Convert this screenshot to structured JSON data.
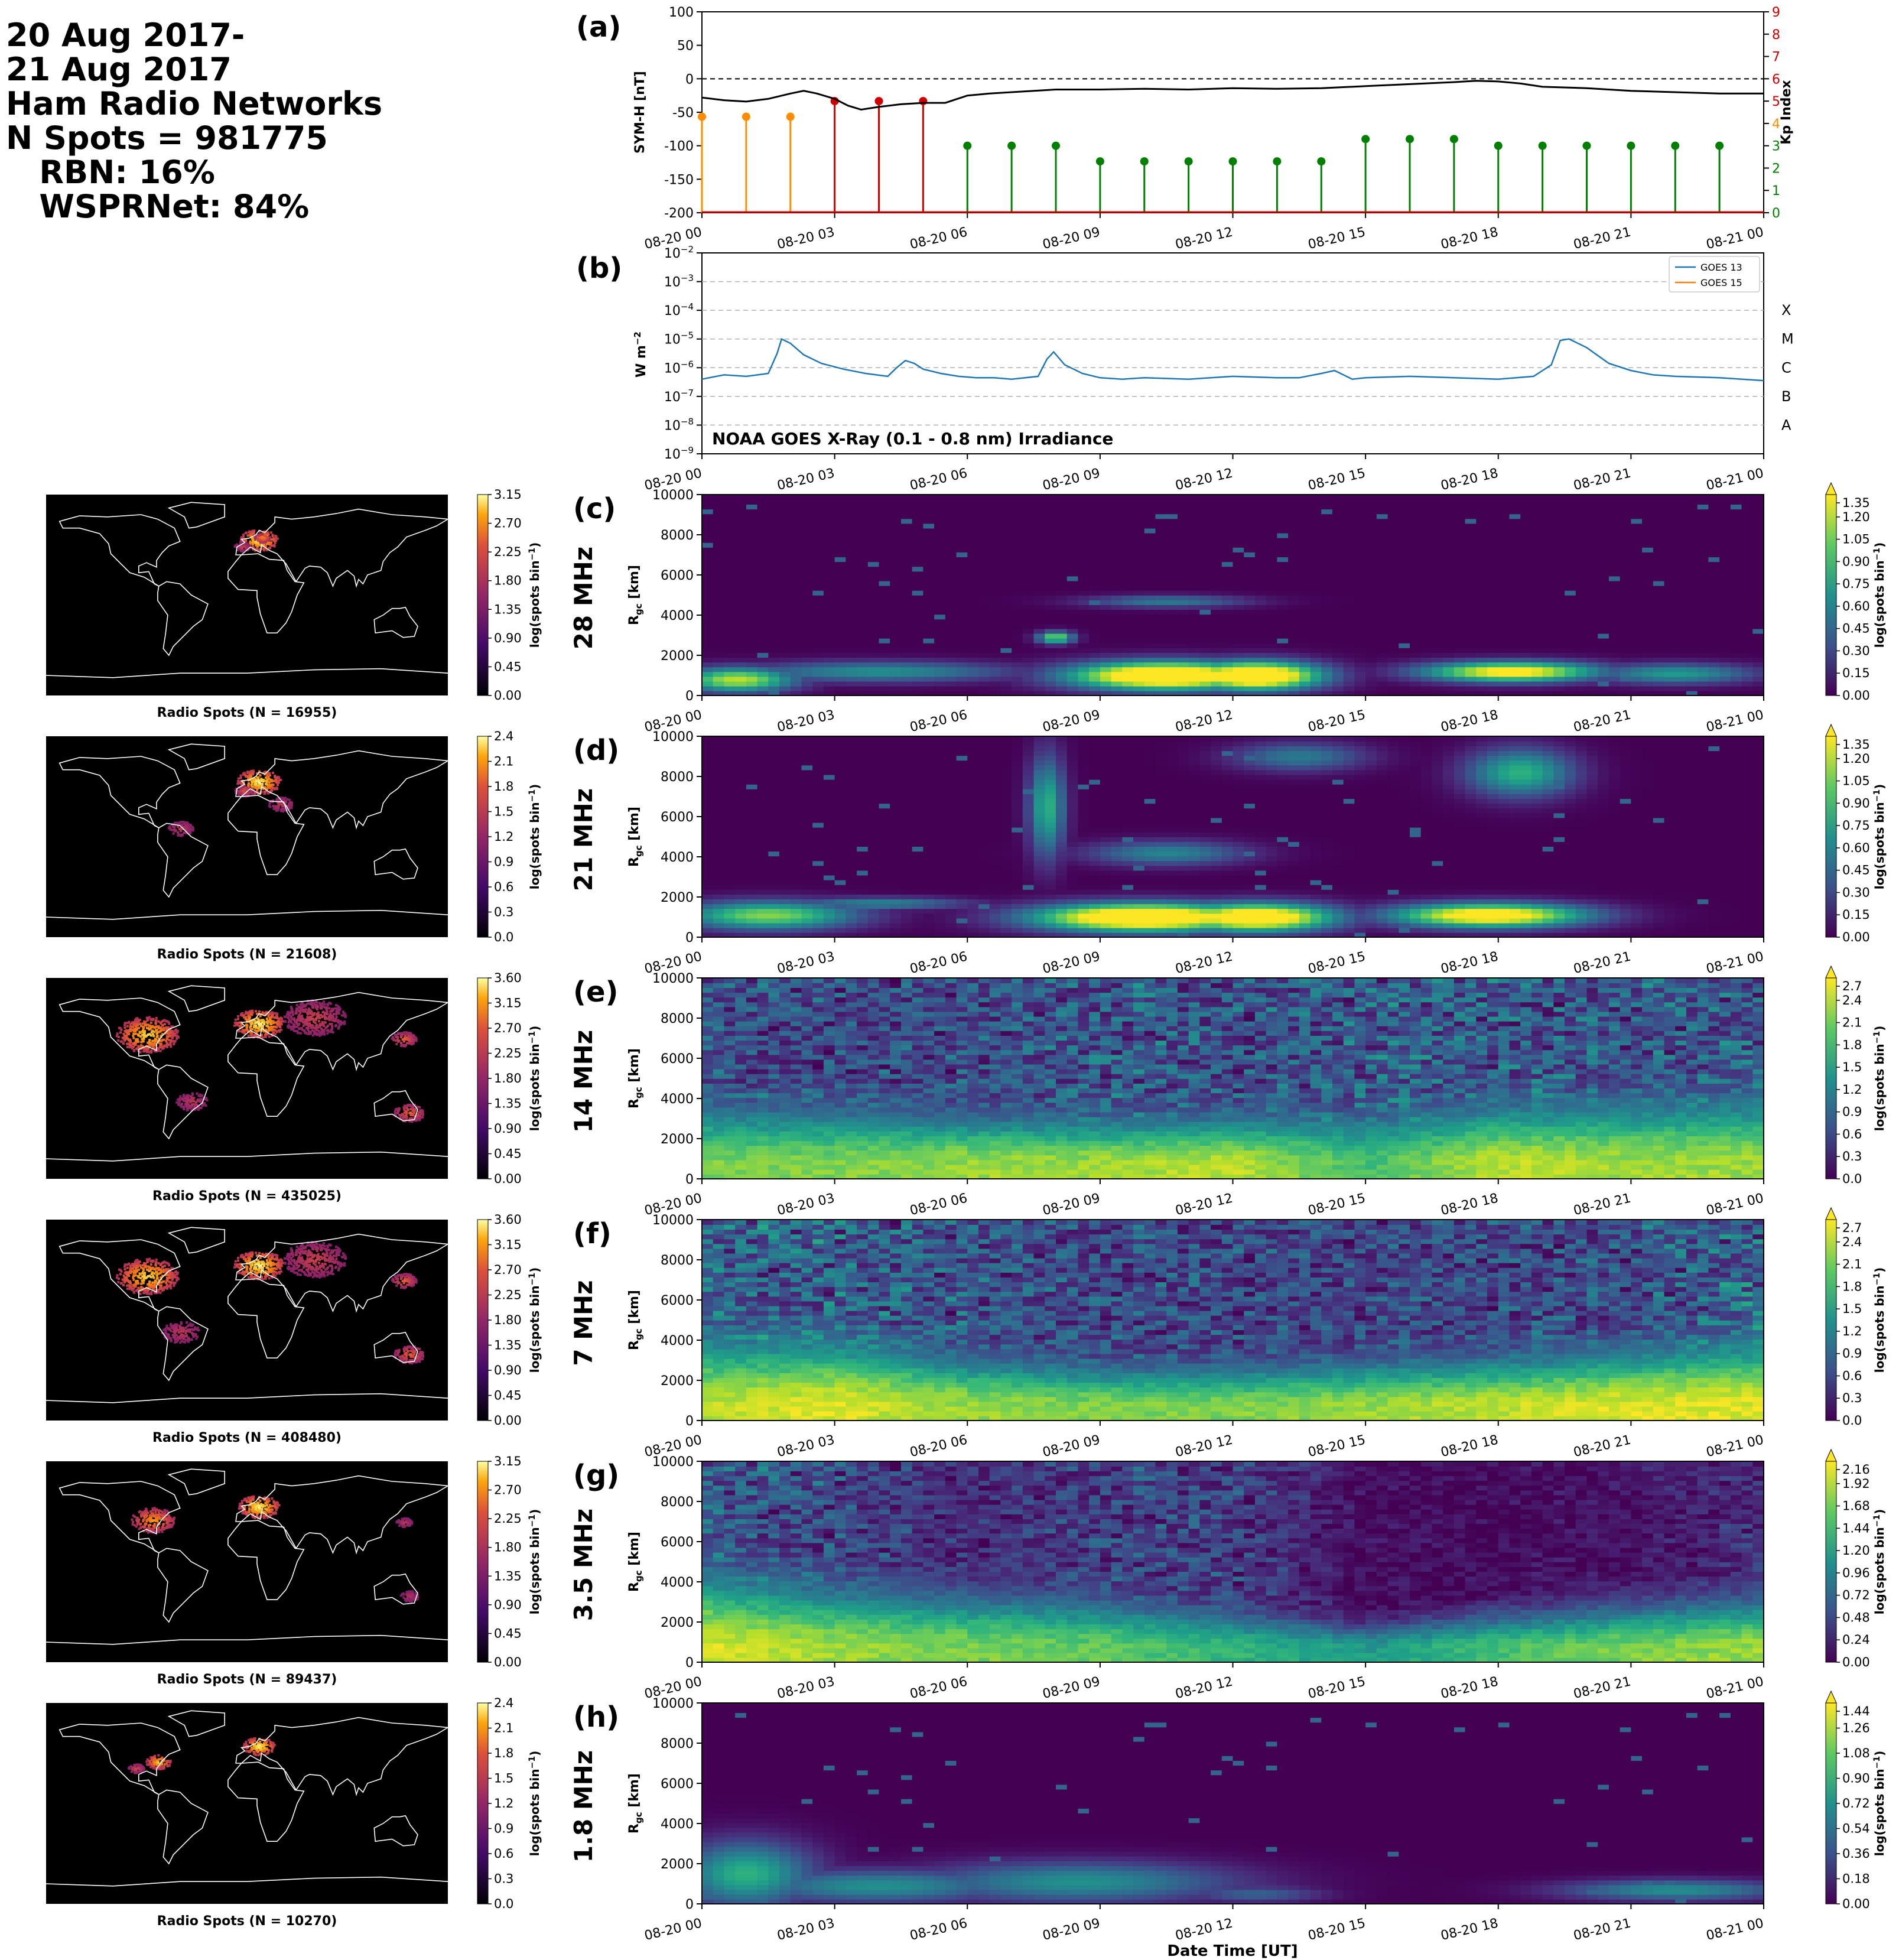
{
  "header": {
    "lines": [
      "20 Aug 2017-",
      "21 Aug 2017",
      "Ham Radio Networks",
      "N Spots = 981775",
      "   RBN: 16%",
      "   WSPRNet: 84%"
    ]
  },
  "time_ticks": [
    "08-20 00",
    "08-20 03",
    "08-20 06",
    "08-20 09",
    "08-20 12",
    "08-20 15",
    "08-20 18",
    "08-20 21",
    "08-21 00"
  ],
  "xlabel": "Date Time [UT]",
  "chart_data": [
    {
      "id": "a",
      "panel_label": "(a)",
      "type": "line",
      "ylabel_left": "SYM-H [nT]",
      "ylabel_right": "Kp Index",
      "ylim": [
        -200,
        100
      ],
      "yticks": [
        100,
        50,
        0,
        -50,
        -100,
        -150,
        -200
      ],
      "ylim_right": [
        0,
        9
      ],
      "yticks_right": [
        9,
        8,
        7,
        6,
        5,
        4,
        3,
        2,
        1,
        0
      ],
      "xlim_hours": [
        0,
        24
      ],
      "symh": {
        "hours": [
          0,
          0.5,
          1,
          1.5,
          2,
          2.3,
          2.6,
          3,
          3.3,
          3.6,
          4,
          4.5,
          5,
          5.5,
          6,
          6.5,
          7,
          8,
          9,
          10,
          11,
          12,
          13,
          14,
          15,
          16,
          17,
          17.5,
          18,
          18.5,
          19,
          20,
          21,
          22,
          23,
          24
        ],
        "values": [
          -28,
          -32,
          -34,
          -30,
          -22,
          -18,
          -22,
          -30,
          -40,
          -46,
          -42,
          -38,
          -36,
          -36,
          -25,
          -22,
          -20,
          -16,
          -16,
          -15,
          -16,
          -14,
          -15,
          -14,
          -11,
          -8,
          -5,
          -3,
          -4,
          -7,
          -12,
          -14,
          -18,
          -20,
          -22,
          -22
        ]
      },
      "kp": {
        "hours": [
          0,
          1,
          2,
          3,
          4,
          5,
          6,
          7,
          8,
          9,
          10,
          11,
          12,
          13,
          14,
          15,
          16,
          17,
          18,
          19,
          20,
          21,
          22,
          23
        ],
        "values": [
          4.3,
          4.3,
          4.3,
          5.0,
          5.0,
          5.0,
          3.0,
          3.0,
          3.0,
          2.3,
          2.3,
          2.3,
          2.3,
          2.3,
          2.3,
          3.3,
          3.3,
          3.3,
          3.0,
          3.0,
          3.0,
          3.0,
          3.0,
          3.0
        ]
      },
      "kp_colors": {
        "green": "#008000",
        "orange": "#ff8c00",
        "red": "#d00000"
      }
    },
    {
      "id": "b",
      "panel_label": "(b)",
      "type": "line",
      "ylabel": "W m$^{-2}$",
      "ylim_log10": [
        -9,
        -2
      ],
      "yticks_log10": [
        -2,
        -3,
        -4,
        -5,
        -6,
        -7,
        -8,
        -9
      ],
      "class_labels": [
        "X",
        "M",
        "C",
        "B",
        "A"
      ],
      "annotation": "NOAA GOES X-Ray (0.1 - 0.8 nm) Irradiance",
      "legend": [
        "GOES 13",
        "GOES 15"
      ],
      "legend_position": "top-right",
      "series": [
        {
          "name": "GOES 13",
          "color": "#1f77b4",
          "hours": [
            0,
            0.5,
            1,
            1.5,
            1.7,
            1.8,
            2.0,
            2.3,
            2.7,
            3.2,
            3.7,
            4.2,
            4.4,
            4.6,
            4.8,
            5.0,
            5.4,
            5.8,
            6.2,
            6.6,
            7.0,
            7.6,
            7.8,
            7.95,
            8.2,
            8.6,
            9.0,
            9.5,
            10,
            11,
            12,
            13,
            13.5,
            14,
            14.3,
            14.5,
            14.7,
            15,
            16,
            17,
            18,
            18.8,
            19.2,
            19.4,
            19.6,
            20,
            20.5,
            21,
            21.5,
            22,
            23,
            24
          ],
          "log10": [
            -6.4,
            -6.25,
            -6.3,
            -6.2,
            -5.5,
            -5.0,
            -5.15,
            -5.55,
            -5.85,
            -6.05,
            -6.2,
            -6.3,
            -6.0,
            -5.75,
            -5.85,
            -6.05,
            -6.2,
            -6.3,
            -6.35,
            -6.35,
            -6.4,
            -6.3,
            -5.7,
            -5.45,
            -5.9,
            -6.2,
            -6.35,
            -6.4,
            -6.35,
            -6.4,
            -6.3,
            -6.35,
            -6.35,
            -6.2,
            -6.1,
            -6.25,
            -6.4,
            -6.35,
            -6.3,
            -6.35,
            -6.4,
            -6.3,
            -5.9,
            -5.05,
            -5.0,
            -5.3,
            -5.85,
            -6.1,
            -6.25,
            -6.3,
            -6.35,
            -6.45
          ]
        },
        {
          "name": "GOES 15",
          "color": "#ff7f0e",
          "hours": [],
          "log10": []
        }
      ]
    },
    {
      "id": "c",
      "panel_label": "(c)",
      "band": "28 MHz",
      "type": "heatmap",
      "ylabel": "R$_{gc}$ [km]",
      "ylim": [
        0,
        10000
      ],
      "yticks": [
        0,
        2000,
        4000,
        6000,
        8000,
        10000
      ],
      "cbar_label": "log(spots bin$^{-1}$)",
      "cbar_range": [
        0,
        1.35
      ],
      "cbar_ticks": [
        "1.35",
        "1.20",
        "1.05",
        "0.90",
        "0.75",
        "0.60",
        "0.45",
        "0.30",
        "0.15",
        "0.00"
      ],
      "colormap": "viridis",
      "blobs": [
        {
          "t": 0.8,
          "r": 800,
          "dt": 1.3,
          "dr": 600,
          "v": 1.0
        },
        {
          "t": 4.0,
          "r": 1200,
          "dt": 3.0,
          "dr": 500,
          "v": 0.55
        },
        {
          "t": 10.5,
          "r": 1000,
          "dt": 2.2,
          "dr": 700,
          "v": 1.5
        },
        {
          "t": 12.5,
          "r": 1000,
          "dt": 1.5,
          "dr": 700,
          "v": 1.5
        },
        {
          "t": 8.0,
          "r": 2900,
          "dt": 0.4,
          "dr": 300,
          "v": 0.9
        },
        {
          "t": 10.5,
          "r": 4700,
          "dt": 1.8,
          "dr": 300,
          "v": 0.45
        },
        {
          "t": 18.3,
          "r": 1200,
          "dt": 2.0,
          "dr": 500,
          "v": 1.2
        },
        {
          "t": 22.0,
          "r": 1100,
          "dt": 1.8,
          "dr": 500,
          "v": 0.6
        }
      ],
      "map": {
        "caption": "Radio Spots (N = 16955)",
        "cbar_ticks": [
          "3.15",
          "2.70",
          "2.25",
          "1.80",
          "1.35",
          "0.90",
          "0.45",
          "0.00"
        ],
        "hotspots": [
          {
            "lon": 10,
            "lat": 50,
            "s": 12,
            "v": 1.0
          },
          {
            "lon": 13,
            "lat": 52,
            "s": 5,
            "v": 0.7
          },
          {
            "lon": -5,
            "lat": 44,
            "s": 5,
            "v": 0.35
          }
        ]
      }
    },
    {
      "id": "d",
      "panel_label": "(d)",
      "band": "21 MHz",
      "type": "heatmap",
      "ylabel": "R$_{gc}$ [km]",
      "ylim": [
        0,
        10000
      ],
      "yticks": [
        0,
        2000,
        4000,
        6000,
        8000,
        10000
      ],
      "cbar_label": "log(spots bin$^{-1}$)",
      "cbar_range": [
        0,
        1.35
      ],
      "cbar_ticks": [
        "1.35",
        "1.20",
        "1.05",
        "0.90",
        "0.75",
        "0.60",
        "0.45",
        "0.30",
        "0.15",
        "0.00"
      ],
      "colormap": "viridis",
      "blobs": [
        {
          "t": 1.5,
          "r": 1100,
          "dt": 2.0,
          "dr": 700,
          "v": 0.9
        },
        {
          "t": 4.0,
          "r": 1700,
          "dt": 2.0,
          "dr": 300,
          "v": 0.5
        },
        {
          "t": 10.0,
          "r": 1000,
          "dt": 2.5,
          "dr": 700,
          "v": 1.5
        },
        {
          "t": 12.5,
          "r": 1000,
          "dt": 1.8,
          "dr": 700,
          "v": 1.4
        },
        {
          "t": 7.8,
          "r": 6500,
          "dt": 0.4,
          "dr": 2500,
          "v": 0.7
        },
        {
          "t": 10.5,
          "r": 4200,
          "dt": 1.8,
          "dr": 600,
          "v": 0.5
        },
        {
          "t": 13.5,
          "r": 9000,
          "dt": 1.5,
          "dr": 700,
          "v": 0.45
        },
        {
          "t": 17.8,
          "r": 1100,
          "dt": 2.2,
          "dr": 600,
          "v": 1.3
        },
        {
          "t": 18.5,
          "r": 8200,
          "dt": 1.2,
          "dr": 1200,
          "v": 0.7
        }
      ],
      "map": {
        "caption": "Radio Spots (N = 21608)",
        "cbar_ticks": [
          "2.4",
          "2.1",
          "1.8",
          "1.5",
          "1.2",
          "0.9",
          "0.6",
          "0.3",
          "0.0"
        ],
        "hotspots": [
          {
            "lon": 10,
            "lat": 50,
            "s": 14,
            "v": 1.0
          },
          {
            "lon": -3,
            "lat": 42,
            "s": 6,
            "v": 0.45
          },
          {
            "lon": -60,
            "lat": 8,
            "s": 8,
            "v": 0.3
          },
          {
            "lon": 30,
            "lat": 30,
            "s": 8,
            "v": 0.3
          }
        ]
      }
    },
    {
      "id": "e",
      "panel_label": "(e)",
      "band": "14 MHz",
      "type": "heatmap",
      "ylabel": "R$_{gc}$ [km]",
      "ylim": [
        0,
        10000
      ],
      "yticks": [
        0,
        2000,
        4000,
        6000,
        8000,
        10000
      ],
      "cbar_label": "log(spots bin$^{-1}$)",
      "cbar_range": [
        0,
        2.7
      ],
      "cbar_ticks": [
        "2.7",
        "2.4",
        "2.1",
        "1.8",
        "1.5",
        "1.2",
        "0.9",
        "0.6",
        "0.3",
        "0.0"
      ],
      "colormap": "viridis",
      "profile": {
        "hours": [
          0,
          3,
          6,
          9,
          12,
          15,
          18,
          21,
          24
        ],
        "near_strength": [
          0.8,
          0.8,
          0.85,
          0.85,
          0.9,
          0.7,
          0.9,
          0.85,
          0.85
        ],
        "falloff_km": [
          3200,
          3000,
          2600,
          2500,
          2600,
          2800,
          3200,
          3400,
          3600
        ],
        "far_strength": [
          0.45,
          0.4,
          0.4,
          0.5,
          0.45,
          0.5,
          0.5,
          0.5,
          0.5
        ]
      },
      "map": {
        "caption": "Radio Spots (N = 435025)",
        "cbar_ticks": [
          "3.60",
          "3.15",
          "2.70",
          "2.25",
          "1.80",
          "1.35",
          "0.90",
          "0.45",
          "0.00"
        ],
        "hotspots": [
          {
            "lon": 10,
            "lat": 50,
            "s": 16,
            "v": 1.0
          },
          {
            "lon": -90,
            "lat": 40,
            "s": 20,
            "v": 0.9
          },
          {
            "lon": 140,
            "lat": 36,
            "s": 8,
            "v": 0.5
          },
          {
            "lon": 145,
            "lat": -30,
            "s": 10,
            "v": 0.5
          },
          {
            "lon": -50,
            "lat": -20,
            "s": 10,
            "v": 0.3
          },
          {
            "lon": 60,
            "lat": 55,
            "s": 20,
            "v": 0.35
          }
        ]
      }
    },
    {
      "id": "f",
      "panel_label": "(f)",
      "band": "7 MHz",
      "type": "heatmap",
      "ylabel": "R$_{gc}$ [km]",
      "ylim": [
        0,
        10000
      ],
      "yticks": [
        0,
        2000,
        4000,
        6000,
        8000,
        10000
      ],
      "cbar_label": "log(spots bin$^{-1}$)",
      "cbar_range": [
        0,
        2.7
      ],
      "cbar_ticks": [
        "2.7",
        "2.4",
        "2.1",
        "1.8",
        "1.5",
        "1.2",
        "0.9",
        "0.6",
        "0.3",
        "0.0"
      ],
      "colormap": "viridis",
      "profile": {
        "hours": [
          0,
          3,
          6,
          9,
          12,
          15,
          18,
          21,
          24
        ],
        "near_strength": [
          0.9,
          0.95,
          0.85,
          0.8,
          0.8,
          0.85,
          0.9,
          0.95,
          0.95
        ],
        "falloff_km": [
          3800,
          3600,
          2600,
          2200,
          2200,
          2400,
          2600,
          3000,
          3600
        ],
        "far_strength": [
          0.55,
          0.55,
          0.45,
          0.4,
          0.4,
          0.35,
          0.4,
          0.45,
          0.6
        ]
      },
      "map": {
        "caption": "Radio Spots (N = 408480)",
        "cbar_ticks": [
          "3.60",
          "3.15",
          "2.70",
          "2.25",
          "1.80",
          "1.35",
          "0.90",
          "0.45",
          "0.00"
        ],
        "hotspots": [
          {
            "lon": 10,
            "lat": 50,
            "s": 16,
            "v": 1.0
          },
          {
            "lon": -90,
            "lat": 40,
            "s": 20,
            "v": 0.9
          },
          {
            "lon": 140,
            "lat": 36,
            "s": 8,
            "v": 0.5
          },
          {
            "lon": 145,
            "lat": -30,
            "s": 10,
            "v": 0.5
          },
          {
            "lon": -60,
            "lat": -10,
            "s": 12,
            "v": 0.3
          },
          {
            "lon": 60,
            "lat": 55,
            "s": 20,
            "v": 0.35
          }
        ]
      }
    },
    {
      "id": "g",
      "panel_label": "(g)",
      "band": "3.5 MHz",
      "type": "heatmap",
      "ylabel": "R$_{gc}$ [km]",
      "ylim": [
        0,
        10000
      ],
      "yticks": [
        0,
        2000,
        4000,
        6000,
        8000,
        10000
      ],
      "cbar_label": "log(spots bin$^{-1}$)",
      "cbar_range": [
        0,
        2.16
      ],
      "cbar_ticks": [
        "2.16",
        "1.92",
        "1.68",
        "1.44",
        "1.20",
        "0.96",
        "0.72",
        "0.48",
        "0.24",
        "0.00"
      ],
      "colormap": "viridis",
      "profile": {
        "hours": [
          0,
          3,
          6,
          9,
          12,
          15,
          18,
          21,
          24
        ],
        "near_strength": [
          0.95,
          0.85,
          0.8,
          0.75,
          0.65,
          0.55,
          0.7,
          0.8,
          0.85
        ],
        "falloff_km": [
          4000,
          3200,
          2800,
          2600,
          2000,
          1200,
          1800,
          2200,
          2600
        ],
        "far_strength": [
          0.5,
          0.4,
          0.2,
          0.35,
          0.35,
          0.05,
          0.05,
          0.1,
          0.25
        ]
      },
      "map": {
        "caption": "Radio Spots (N = 89437)",
        "cbar_ticks": [
          "3.15",
          "2.70",
          "2.25",
          "1.80",
          "1.35",
          "0.90",
          "0.45",
          "0.00"
        ],
        "hotspots": [
          {
            "lon": 10,
            "lat": 50,
            "s": 13,
            "v": 1.0
          },
          {
            "lon": -85,
            "lat": 38,
            "s": 14,
            "v": 0.7
          },
          {
            "lon": 140,
            "lat": 36,
            "s": 5,
            "v": 0.3
          },
          {
            "lon": 145,
            "lat": -30,
            "s": 6,
            "v": 0.25
          }
        ]
      }
    },
    {
      "id": "h",
      "panel_label": "(h)",
      "band": "1.8 MHz",
      "type": "heatmap",
      "ylabel": "R$_{gc}$ [km]",
      "ylim": [
        0,
        10000
      ],
      "yticks": [
        0,
        2000,
        4000,
        6000,
        8000,
        10000
      ],
      "cbar_label": "log(spots bin$^{-1}$)",
      "cbar_range": [
        0,
        1.44
      ],
      "cbar_ticks": [
        "1.44",
        "1.26",
        "1.08",
        "0.90",
        "0.72",
        "0.54",
        "0.36",
        "0.18",
        "0.00"
      ],
      "colormap": "viridis",
      "blobs": [
        {
          "t": 1.0,
          "r": 1500,
          "dt": 1.5,
          "dr": 1600,
          "v": 0.7
        },
        {
          "t": 4.0,
          "r": 900,
          "dt": 3.0,
          "dr": 800,
          "v": 0.55
        },
        {
          "t": 8.5,
          "r": 1100,
          "dt": 3.5,
          "dr": 1000,
          "v": 0.55
        },
        {
          "t": 12.5,
          "r": 500,
          "dt": 1.5,
          "dr": 400,
          "v": 0.35
        },
        {
          "t": 22.0,
          "r": 700,
          "dt": 2.5,
          "dr": 500,
          "v": 0.55
        }
      ],
      "map": {
        "caption": "Radio Spots (N = 10270)",
        "cbar_ticks": [
          "2.4",
          "2.1",
          "1.8",
          "1.5",
          "1.2",
          "0.9",
          "0.6",
          "0.3",
          "0.0"
        ],
        "hotspots": [
          {
            "lon": 10,
            "lat": 52,
            "s": 10,
            "v": 1.0
          },
          {
            "lon": -80,
            "lat": 38,
            "s": 8,
            "v": 0.85
          },
          {
            "lon": -100,
            "lat": 32,
            "s": 5,
            "v": 0.4
          }
        ]
      }
    }
  ]
}
